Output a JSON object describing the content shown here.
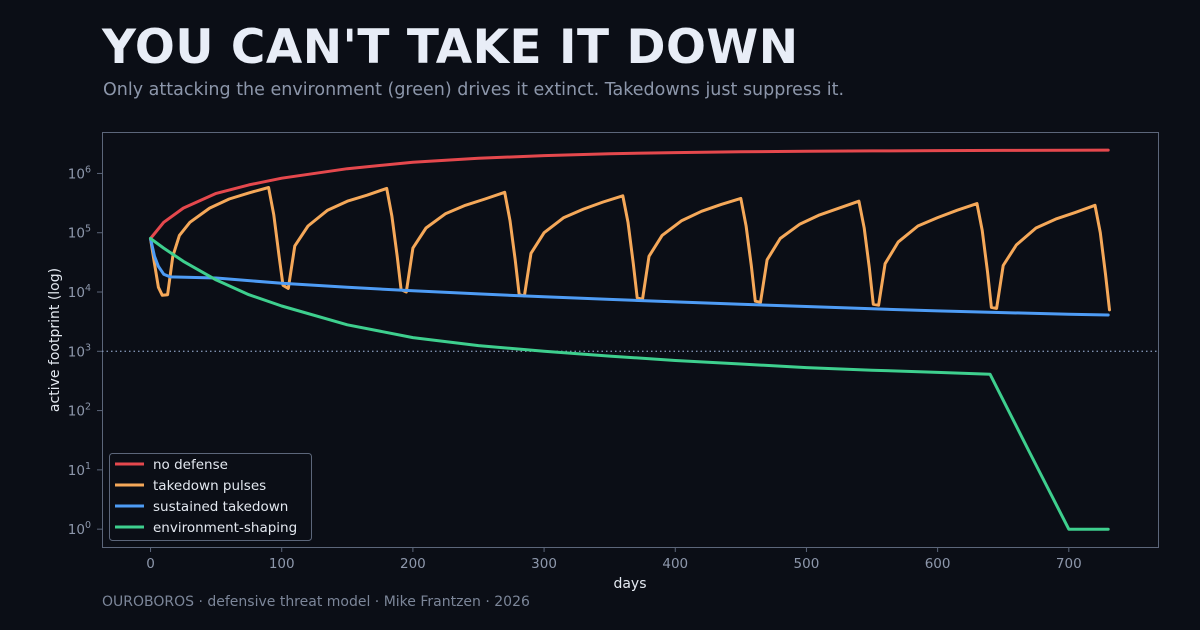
{
  "header": {
    "title": "YOU CAN'T TAKE IT DOWN",
    "subtitle": "Only attacking the environment (green) drives it extinct. Takedowns just suppress it."
  },
  "footer": {
    "text": "OUROBOROS  ·  defensive threat model  ·  Mike Frantzen  ·  2026"
  },
  "colors": {
    "background": "#0b0e16",
    "plot_border": "#5c667a",
    "tick_text": "#8d97ab",
    "axis_label": "#e3e8f0",
    "threshold": "#7d8faf"
  },
  "chart_data": {
    "type": "line",
    "xlabel": "days",
    "ylabel": "active footprint (log)",
    "xscale": "linear",
    "yscale": "log",
    "xlim": [
      -37,
      768
    ],
    "ylim": [
      0.5,
      5000000
    ],
    "x_ticks": [
      0,
      100,
      200,
      300,
      400,
      500,
      600,
      700
    ],
    "y_ticks": [
      1,
      10,
      100,
      1000,
      10000,
      100000,
      1000000
    ],
    "y_tick_labels": [
      {
        "base": "10",
        "exp": "0"
      },
      {
        "base": "10",
        "exp": "1"
      },
      {
        "base": "10",
        "exp": "2"
      },
      {
        "base": "10",
        "exp": "3"
      },
      {
        "base": "10",
        "exp": "4"
      },
      {
        "base": "10",
        "exp": "5"
      },
      {
        "base": "10",
        "exp": "6"
      }
    ],
    "grid": false,
    "threshold_line": {
      "y": 1000,
      "style": "dotted"
    },
    "legend_position": "lower-left",
    "series": [
      {
        "name": "no defense",
        "color": "#e5484d",
        "points": [
          [
            0,
            80000
          ],
          [
            10,
            150000
          ],
          [
            25,
            260000
          ],
          [
            50,
            460000
          ],
          [
            75,
            640000
          ],
          [
            100,
            830000
          ],
          [
            150,
            1200000
          ],
          [
            200,
            1550000
          ],
          [
            250,
            1800000
          ],
          [
            300,
            2000000
          ],
          [
            350,
            2150000
          ],
          [
            400,
            2250000
          ],
          [
            450,
            2320000
          ],
          [
            500,
            2370000
          ],
          [
            550,
            2400000
          ],
          [
            600,
            2430000
          ],
          [
            650,
            2450000
          ],
          [
            700,
            2470000
          ],
          [
            730,
            2480000
          ]
        ]
      },
      {
        "name": "takedown pulses",
        "color": "#f5a859",
        "points": [
          [
            0,
            80000
          ],
          [
            3,
            30000
          ],
          [
            6,
            12000
          ],
          [
            9,
            8800
          ],
          [
            13,
            9000
          ],
          [
            17,
            40000
          ],
          [
            22,
            90000
          ],
          [
            30,
            150000
          ],
          [
            45,
            260000
          ],
          [
            60,
            370000
          ],
          [
            75,
            470000
          ],
          [
            90,
            580000
          ],
          [
            94,
            200000
          ],
          [
            98,
            40000
          ],
          [
            101,
            13000
          ],
          [
            105,
            11500
          ],
          [
            110,
            60000
          ],
          [
            120,
            130000
          ],
          [
            135,
            240000
          ],
          [
            150,
            340000
          ],
          [
            165,
            430000
          ],
          [
            180,
            560000
          ],
          [
            184,
            190000
          ],
          [
            188,
            40000
          ],
          [
            191,
            11000
          ],
          [
            195,
            10000
          ],
          [
            200,
            55000
          ],
          [
            210,
            120000
          ],
          [
            225,
            210000
          ],
          [
            240,
            290000
          ],
          [
            255,
            370000
          ],
          [
            270,
            480000
          ],
          [
            274,
            160000
          ],
          [
            278,
            35000
          ],
          [
            281,
            9000
          ],
          [
            285,
            8600
          ],
          [
            290,
            45000
          ],
          [
            300,
            100000
          ],
          [
            315,
            180000
          ],
          [
            330,
            250000
          ],
          [
            345,
            330000
          ],
          [
            360,
            420000
          ],
          [
            364,
            150000
          ],
          [
            368,
            30000
          ],
          [
            371,
            8000
          ],
          [
            375,
            7500
          ],
          [
            380,
            40000
          ],
          [
            390,
            90000
          ],
          [
            405,
            160000
          ],
          [
            420,
            230000
          ],
          [
            435,
            300000
          ],
          [
            450,
            380000
          ],
          [
            454,
            130000
          ],
          [
            458,
            28000
          ],
          [
            461,
            7000
          ],
          [
            465,
            6700
          ],
          [
            470,
            35000
          ],
          [
            480,
            80000
          ],
          [
            495,
            140000
          ],
          [
            510,
            200000
          ],
          [
            525,
            260000
          ],
          [
            540,
            340000
          ],
          [
            544,
            120000
          ],
          [
            548,
            25000
          ],
          [
            551,
            6200
          ],
          [
            555,
            6000
          ],
          [
            560,
            30000
          ],
          [
            570,
            70000
          ],
          [
            585,
            130000
          ],
          [
            600,
            180000
          ],
          [
            615,
            240000
          ],
          [
            630,
            310000
          ],
          [
            634,
            110000
          ],
          [
            638,
            22000
          ],
          [
            641,
            5500
          ],
          [
            645,
            5300
          ],
          [
            650,
            28000
          ],
          [
            660,
            62000
          ],
          [
            675,
            120000
          ],
          [
            690,
            170000
          ],
          [
            705,
            220000
          ],
          [
            720,
            290000
          ],
          [
            724,
            100000
          ],
          [
            728,
            20000
          ],
          [
            731,
            5000
          ]
        ]
      },
      {
        "name": "sustained takedown",
        "color": "#4e9cf5",
        "points": [
          [
            0,
            80000
          ],
          [
            3,
            40000
          ],
          [
            6,
            27000
          ],
          [
            10,
            20000
          ],
          [
            15,
            18000
          ],
          [
            50,
            17200
          ],
          [
            100,
            14000
          ],
          [
            150,
            12000
          ],
          [
            200,
            10500
          ],
          [
            250,
            9300
          ],
          [
            300,
            8300
          ],
          [
            350,
            7500
          ],
          [
            400,
            6800
          ],
          [
            450,
            6200
          ],
          [
            500,
            5700
          ],
          [
            550,
            5200
          ],
          [
            600,
            4800
          ],
          [
            650,
            4500
          ],
          [
            700,
            4200
          ],
          [
            730,
            4100
          ]
        ]
      },
      {
        "name": "environment-shaping",
        "color": "#3ecf8e",
        "points": [
          [
            0,
            80000
          ],
          [
            10,
            55000
          ],
          [
            25,
            33000
          ],
          [
            50,
            16000
          ],
          [
            75,
            9000
          ],
          [
            100,
            5800
          ],
          [
            150,
            2800
          ],
          [
            200,
            1700
          ],
          [
            250,
            1250
          ],
          [
            300,
            1000
          ],
          [
            350,
            830
          ],
          [
            400,
            700
          ],
          [
            450,
            610
          ],
          [
            500,
            530
          ],
          [
            550,
            480
          ],
          [
            600,
            440
          ],
          [
            640,
            410
          ],
          [
            670,
            20
          ],
          [
            700,
            1
          ],
          [
            730,
            1
          ]
        ]
      }
    ]
  }
}
